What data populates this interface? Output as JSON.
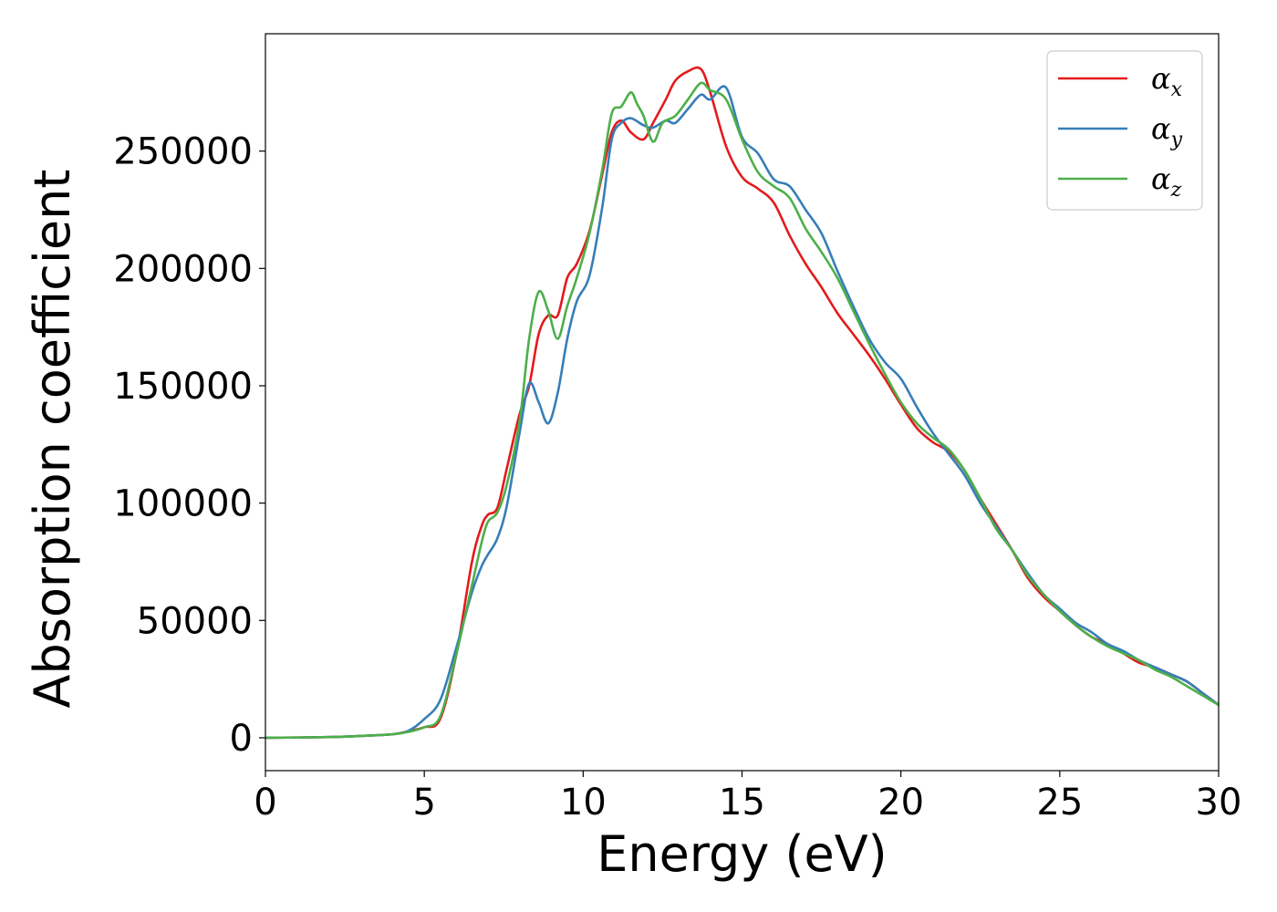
{
  "chart_data": {
    "type": "line",
    "xlabel": "Energy (eV)",
    "ylabel": "Absorption coefficient",
    "xlim": [
      0,
      30
    ],
    "ylim": [
      -14000,
      300000
    ],
    "xticks": [
      0,
      5,
      10,
      15,
      20,
      25,
      30
    ],
    "xtick_labels": [
      "0",
      "5",
      "10",
      "15",
      "20",
      "25",
      "30"
    ],
    "yticks": [
      0,
      50000,
      100000,
      150000,
      200000,
      250000
    ],
    "ytick_labels": [
      "0",
      "50000",
      "100000",
      "150000",
      "200000",
      "250000"
    ],
    "grid": false,
    "legend_position": "top-right",
    "series": [
      {
        "name": "α_x",
        "legend_base": "α",
        "legend_sub": "x",
        "color": "#e41a1c",
        "x": [
          0,
          2,
          3,
          4,
          4.5,
          5,
          5.5,
          6,
          6.5,
          6.8,
          7.0,
          7.3,
          7.6,
          8.0,
          8.3,
          8.6,
          8.9,
          9.2,
          9.5,
          9.8,
          10.2,
          10.6,
          10.9,
          11.2,
          11.5,
          11.9,
          12.2,
          12.6,
          12.9,
          13.3,
          13.7,
          14.0,
          14.5,
          15.0,
          15.5,
          16.0,
          16.5,
          17.0,
          17.5,
          18.0,
          18.5,
          19.0,
          19.5,
          20.0,
          20.5,
          21.0,
          21.5,
          22.0,
          22.5,
          23.0,
          23.5,
          24.0,
          24.5,
          25.0,
          25.5,
          26.0,
          26.5,
          27.0,
          27.5,
          28.0,
          28.5,
          29.0,
          29.5,
          30.0
        ],
        "y": [
          0,
          300,
          800,
          1500,
          2800,
          4500,
          8000,
          35000,
          75000,
          90000,
          95000,
          98000,
          115000,
          138000,
          150000,
          172000,
          180000,
          180000,
          196000,
          202000,
          216000,
          240000,
          258000,
          263000,
          258000,
          255000,
          262000,
          272000,
          280000,
          284000,
          285000,
          275000,
          252000,
          239000,
          234000,
          228000,
          214000,
          202000,
          192000,
          181000,
          172000,
          163000,
          153000,
          142000,
          132000,
          126000,
          122000,
          114000,
          102000,
          91000,
          80000,
          68000,
          60000,
          54000,
          48000,
          43000,
          40000,
          36000,
          32000,
          30000,
          27000,
          24000,
          19000,
          14000
        ]
      },
      {
        "name": "α_y",
        "legend_base": "α",
        "legend_sub": "y",
        "color": "#377eb8",
        "x": [
          0,
          2,
          3,
          4,
          4.5,
          5,
          5.5,
          6,
          6.5,
          6.8,
          7.0,
          7.3,
          7.6,
          8.0,
          8.3,
          8.6,
          8.9,
          9.2,
          9.5,
          9.8,
          10.2,
          10.6,
          10.9,
          11.2,
          11.5,
          11.9,
          12.2,
          12.6,
          12.9,
          13.3,
          13.7,
          14.0,
          14.5,
          15.0,
          15.5,
          16.0,
          16.5,
          17.0,
          17.5,
          18.0,
          18.5,
          19.0,
          19.5,
          20.0,
          20.5,
          21.0,
          21.5,
          22.0,
          22.5,
          23.0,
          23.5,
          24.0,
          24.5,
          25.0,
          25.5,
          26.0,
          26.5,
          27.0,
          27.5,
          28.0,
          28.5,
          29.0,
          29.5,
          30.0
        ],
        "y": [
          0,
          300,
          800,
          1500,
          3000,
          8000,
          16000,
          38000,
          62000,
          73000,
          78000,
          85000,
          99000,
          130000,
          151000,
          143000,
          134000,
          147000,
          170000,
          186000,
          197000,
          226000,
          255000,
          262000,
          264000,
          261000,
          260000,
          263000,
          262000,
          268000,
          274000,
          272000,
          277000,
          256000,
          249000,
          238000,
          235000,
          225000,
          215000,
          199000,
          184000,
          170000,
          160000,
          153000,
          141000,
          130000,
          121000,
          112000,
          100000,
          90000,
          80000,
          70000,
          61000,
          55000,
          49000,
          45000,
          40000,
          37000,
          33000,
          30000,
          27000,
          24000,
          19000,
          14000
        ]
      },
      {
        "name": "α_z",
        "legend_base": "α",
        "legend_sub": "z",
        "color": "#4daf4a",
        "x": [
          0,
          2,
          3,
          4,
          4.5,
          5,
          5.5,
          6,
          6.5,
          6.8,
          7.0,
          7.3,
          7.6,
          8.0,
          8.3,
          8.6,
          8.9,
          9.2,
          9.5,
          9.8,
          10.2,
          10.6,
          10.9,
          11.2,
          11.5,
          11.7,
          11.9,
          12.2,
          12.5,
          12.9,
          13.3,
          13.7,
          14.0,
          14.5,
          15.0,
          15.5,
          16.0,
          16.5,
          17.0,
          17.5,
          18.0,
          18.5,
          19.0,
          19.5,
          20.0,
          20.5,
          21.0,
          21.5,
          22.0,
          22.5,
          23.0,
          23.5,
          24.0,
          24.5,
          25.0,
          25.5,
          26.0,
          26.5,
          27.0,
          27.5,
          28.0,
          28.5,
          29.0,
          29.5,
          30.0
        ],
        "y": [
          0,
          300,
          800,
          1500,
          2500,
          4500,
          9000,
          35000,
          65000,
          83000,
          92000,
          96000,
          108000,
          135000,
          170000,
          190000,
          182000,
          170000,
          184000,
          196000,
          215000,
          242000,
          266000,
          269000,
          275000,
          270000,
          265000,
          254000,
          262000,
          265000,
          272000,
          279000,
          276000,
          272000,
          255000,
          241000,
          235000,
          230000,
          217000,
          207000,
          196000,
          182000,
          168000,
          155000,
          143000,
          134000,
          128000,
          123000,
          114000,
          102000,
          89000,
          80000,
          69000,
          61000,
          54000,
          48000,
          43000,
          39000,
          36000,
          33000,
          29000,
          26000,
          22000,
          18000,
          14000
        ]
      }
    ]
  }
}
